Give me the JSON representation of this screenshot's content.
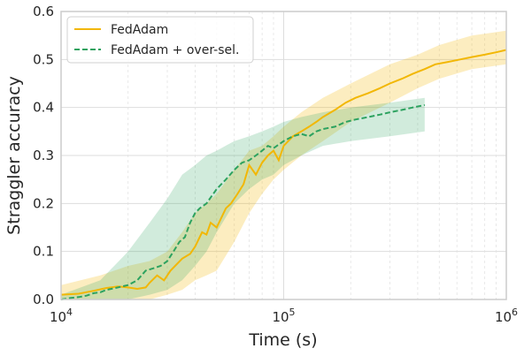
{
  "chart_data": {
    "type": "line",
    "title": "",
    "xlabel": "Time (s)",
    "ylabel": "Straggler accuracy",
    "xscale": "log",
    "xlim": [
      10000,
      1000000
    ],
    "ylim": [
      0,
      0.6
    ],
    "x_ticks": [
      {
        "value": 10000,
        "base": "10",
        "exp": "4"
      },
      {
        "value": 100000,
        "base": "10",
        "exp": "5"
      },
      {
        "value": 1000000,
        "base": "10",
        "exp": "6"
      }
    ],
    "y_ticks": [
      "0.0",
      "0.1",
      "0.2",
      "0.3",
      "0.4",
      "0.5",
      "0.6"
    ],
    "grid": true,
    "legend_position": "upper-left",
    "series": [
      {
        "name": "FedAdam",
        "color": "#f2b705",
        "line_style": "solid",
        "points": [
          [
            10000,
            0.01
          ],
          [
            12000,
            0.012
          ],
          [
            14000,
            0.018
          ],
          [
            16000,
            0.024
          ],
          [
            18000,
            0.027
          ],
          [
            20000,
            0.025
          ],
          [
            22000,
            0.022
          ],
          [
            24000,
            0.025
          ],
          [
            25000,
            0.035
          ],
          [
            27000,
            0.05
          ],
          [
            29000,
            0.04
          ],
          [
            31000,
            0.06
          ],
          [
            35000,
            0.085
          ],
          [
            38000,
            0.095
          ],
          [
            40000,
            0.11
          ],
          [
            43000,
            0.14
          ],
          [
            45000,
            0.135
          ],
          [
            47000,
            0.16
          ],
          [
            50000,
            0.15
          ],
          [
            55000,
            0.19
          ],
          [
            58000,
            0.2
          ],
          [
            62000,
            0.22
          ],
          [
            66000,
            0.24
          ],
          [
            70000,
            0.28
          ],
          [
            75000,
            0.26
          ],
          [
            80000,
            0.285
          ],
          [
            85000,
            0.3
          ],
          [
            90000,
            0.31
          ],
          [
            95000,
            0.29
          ],
          [
            100000,
            0.32
          ],
          [
            110000,
            0.34
          ],
          [
            120000,
            0.35
          ],
          [
            130000,
            0.36
          ],
          [
            140000,
            0.37
          ],
          [
            150000,
            0.38
          ],
          [
            170000,
            0.395
          ],
          [
            190000,
            0.41
          ],
          [
            210000,
            0.42
          ],
          [
            240000,
            0.43
          ],
          [
            270000,
            0.44
          ],
          [
            300000,
            0.45
          ],
          [
            340000,
            0.46
          ],
          [
            380000,
            0.47
          ],
          [
            430000,
            0.48
          ],
          [
            480000,
            0.49
          ],
          [
            550000,
            0.495
          ],
          [
            620000,
            0.5
          ],
          [
            700000,
            0.505
          ],
          [
            800000,
            0.51
          ],
          [
            900000,
            0.515
          ],
          [
            1000000,
            0.52
          ]
        ],
        "band": [
          [
            10000,
            0.0,
            0.03
          ],
          [
            15000,
            0.0,
            0.05
          ],
          [
            20000,
            0.0,
            0.07
          ],
          [
            25000,
            0.0,
            0.08
          ],
          [
            30000,
            0.01,
            0.1
          ],
          [
            35000,
            0.02,
            0.14
          ],
          [
            40000,
            0.04,
            0.18
          ],
          [
            45000,
            0.05,
            0.2
          ],
          [
            50000,
            0.06,
            0.22
          ],
          [
            60000,
            0.12,
            0.27
          ],
          [
            70000,
            0.18,
            0.31
          ],
          [
            80000,
            0.22,
            0.32
          ],
          [
            90000,
            0.25,
            0.34
          ],
          [
            100000,
            0.27,
            0.36
          ],
          [
            120000,
            0.3,
            0.39
          ],
          [
            150000,
            0.33,
            0.42
          ],
          [
            200000,
            0.37,
            0.45
          ],
          [
            300000,
            0.41,
            0.49
          ],
          [
            400000,
            0.44,
            0.51
          ],
          [
            500000,
            0.46,
            0.53
          ],
          [
            700000,
            0.48,
            0.55
          ],
          [
            1000000,
            0.49,
            0.56
          ]
        ]
      },
      {
        "name": "FedAdam + over-sel.",
        "color": "#2ca25f",
        "line_style": "dashed",
        "points": [
          [
            10000,
            0.0
          ],
          [
            11000,
            0.003
          ],
          [
            12000,
            0.005
          ],
          [
            13000,
            0.008
          ],
          [
            14000,
            0.013
          ],
          [
            15000,
            0.015
          ],
          [
            16000,
            0.02
          ],
          [
            18000,
            0.025
          ],
          [
            20000,
            0.03
          ],
          [
            22000,
            0.04
          ],
          [
            24000,
            0.06
          ],
          [
            26000,
            0.065
          ],
          [
            28000,
            0.07
          ],
          [
            30000,
            0.08
          ],
          [
            32000,
            0.1
          ],
          [
            34000,
            0.12
          ],
          [
            36000,
            0.13
          ],
          [
            38000,
            0.16
          ],
          [
            40000,
            0.18
          ],
          [
            42000,
            0.19
          ],
          [
            45000,
            0.2
          ],
          [
            50000,
            0.23
          ],
          [
            55000,
            0.25
          ],
          [
            60000,
            0.27
          ],
          [
            65000,
            0.285
          ],
          [
            70000,
            0.29
          ],
          [
            75000,
            0.3
          ],
          [
            80000,
            0.31
          ],
          [
            85000,
            0.32
          ],
          [
            90000,
            0.315
          ],
          [
            100000,
            0.33
          ],
          [
            110000,
            0.34
          ],
          [
            120000,
            0.345
          ],
          [
            130000,
            0.34
          ],
          [
            140000,
            0.35
          ],
          [
            150000,
            0.355
          ],
          [
            170000,
            0.36
          ],
          [
            190000,
            0.37
          ],
          [
            210000,
            0.375
          ],
          [
            240000,
            0.38
          ],
          [
            270000,
            0.385
          ],
          [
            300000,
            0.39
          ],
          [
            340000,
            0.395
          ],
          [
            380000,
            0.4
          ],
          [
            430000,
            0.405
          ]
        ],
        "band": [
          [
            10000,
            0.0,
            0.01
          ],
          [
            15000,
            0.0,
            0.04
          ],
          [
            20000,
            0.0,
            0.1
          ],
          [
            25000,
            0.01,
            0.16
          ],
          [
            30000,
            0.02,
            0.21
          ],
          [
            35000,
            0.04,
            0.26
          ],
          [
            40000,
            0.07,
            0.28
          ],
          [
            45000,
            0.1,
            0.3
          ],
          [
            50000,
            0.14,
            0.31
          ],
          [
            60000,
            0.2,
            0.33
          ],
          [
            70000,
            0.23,
            0.34
          ],
          [
            80000,
            0.25,
            0.35
          ],
          [
            90000,
            0.26,
            0.36
          ],
          [
            100000,
            0.28,
            0.37
          ],
          [
            120000,
            0.3,
            0.38
          ],
          [
            150000,
            0.32,
            0.39
          ],
          [
            200000,
            0.33,
            0.4
          ],
          [
            300000,
            0.34,
            0.41
          ],
          [
            430000,
            0.35,
            0.42
          ]
        ]
      }
    ]
  }
}
